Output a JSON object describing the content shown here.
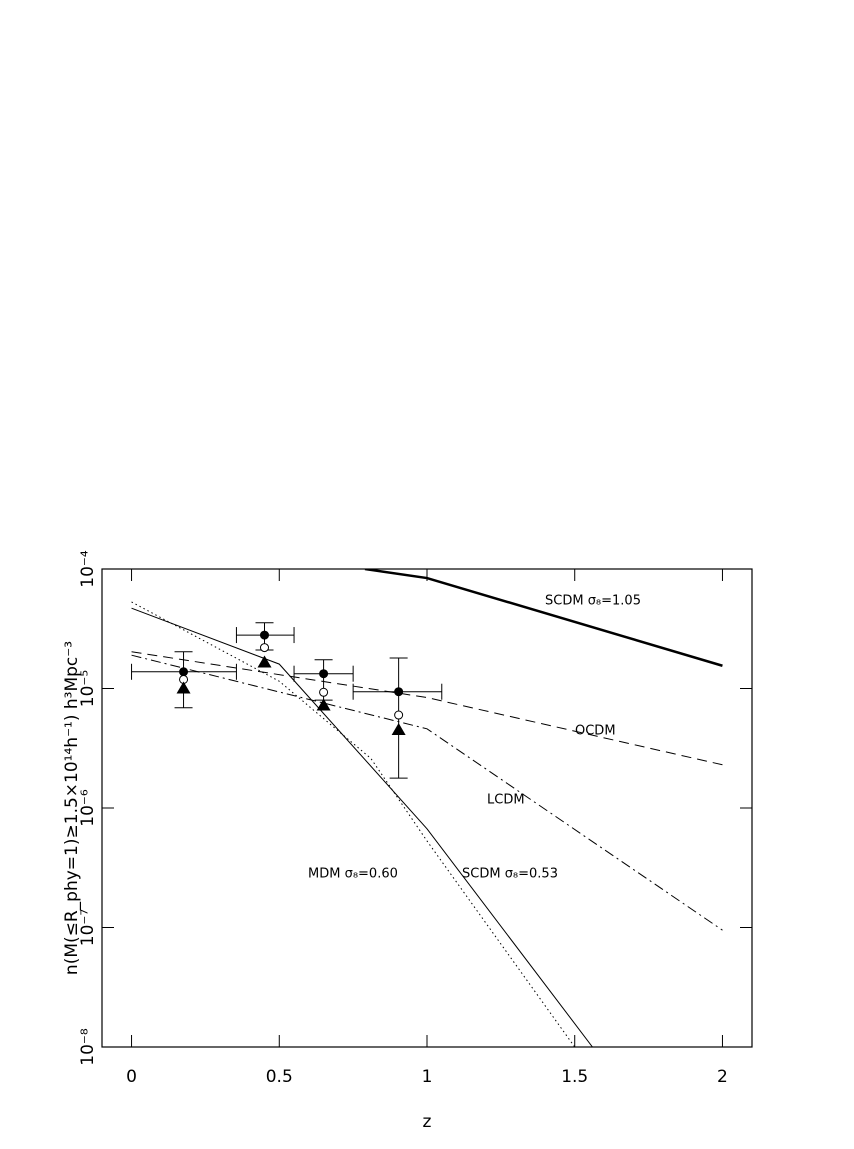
{
  "chart_data": {
    "type": "line",
    "xlabel": "z",
    "ylabel": "n(M(≤R_phy=1)≥1.5×10¹⁴h⁻¹)   h³Mpc⁻³",
    "xlim": [
      -0.1,
      2.1
    ],
    "ylim": [
      1e-08,
      0.0001
    ],
    "log_y": true,
    "xticks": [
      0,
      0.5,
      1,
      1.5,
      2
    ],
    "yticks": [
      {
        "value": 1e-08,
        "label": "10⁻⁸"
      },
      {
        "value": 1e-07,
        "label": "10⁻⁷"
      },
      {
        "value": 1e-06,
        "label": "10⁻⁶"
      },
      {
        "value": 1e-05,
        "label": "10⁻⁵"
      },
      {
        "value": 0.0001,
        "label": "10⁻⁴"
      }
    ],
    "color": "#000000",
    "series": [
      {
        "name": "SCDM σ₈=1.05",
        "style": "solid",
        "linewidth": 2.5,
        "x": [
          0.79,
          1,
          2
        ],
        "values": [
          0.0001,
          8.4e-05,
          1.55e-05
        ]
      },
      {
        "name": "OCDM",
        "style": "dashed",
        "linewidth": 1,
        "x": [
          0,
          1,
          2
        ],
        "values": [
          2.03e-05,
          8.4e-06,
          2.3e-06
        ]
      },
      {
        "name": "LCDM",
        "style": "dashdot",
        "linewidth": 1,
        "x": [
          0,
          1,
          2
        ],
        "values": [
          1.9e-05,
          4.6e-06,
          9.5e-08
        ]
      },
      {
        "name": "MDM σ₈=0.60",
        "style": "dotted",
        "linewidth": 1,
        "x": [
          0,
          0.5,
          0.81,
          1,
          1.5
        ],
        "values": [
          5.3e-05,
          1.15e-05,
          2.6e-06,
          5.3e-07,
          1e-08
        ]
      },
      {
        "name": "SCDM σ₈=0.53",
        "style": "solid",
        "linewidth": 1,
        "x": [
          0,
          0.5,
          1,
          1.56
        ],
        "values": [
          4.7e-05,
          1.6e-05,
          6.7e-07,
          1e-08
        ]
      }
    ],
    "points": [
      {
        "marker": "filled-circle",
        "x": [
          0.176,
          0.45,
          0.65,
          0.904
        ],
        "values": [
          1.38e-05,
          2.8e-05,
          1.33e-05,
          9.4e-06
        ],
        "ylow": [
          6.9e-06,
          2.1e-05,
          8e-06,
          1.78e-06
        ],
        "yhigh": [
          2.03e-05,
          3.55e-05,
          1.74e-05,
          1.8e-05
        ],
        "xlow": [
          0,
          0.355,
          0.55,
          0.75
        ],
        "xhigh": [
          0.355,
          0.55,
          0.75,
          1.05
        ]
      },
      {
        "marker": "open-circle",
        "x": [
          0.176,
          0.45,
          0.65,
          0.904
        ],
        "values": [
          1.19e-05,
          2.2e-05,
          9.3e-06,
          6e-06
        ]
      },
      {
        "marker": "triangle",
        "x": [
          0.176,
          0.45,
          0.65,
          0.904
        ],
        "values": [
          1e-05,
          1.65e-05,
          7.2e-06,
          4.5e-06
        ]
      }
    ]
  }
}
